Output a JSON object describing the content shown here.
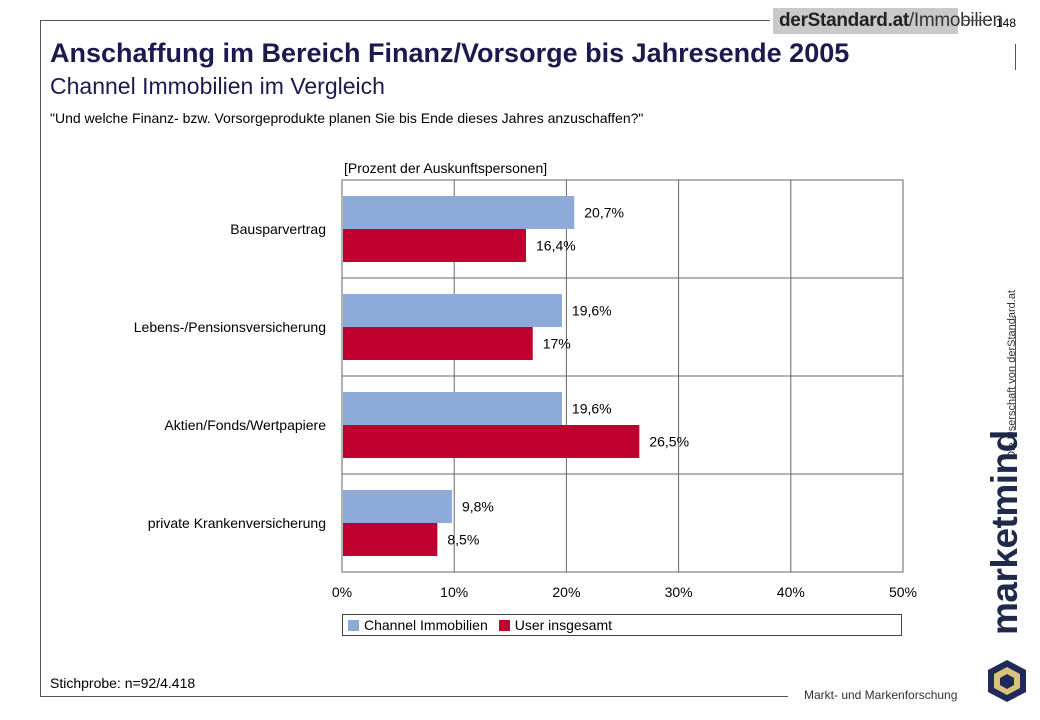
{
  "header": {
    "logo_bold": "derStandard.at",
    "logo_light": "/Immobilien",
    "page_number": "148"
  },
  "title": "Anschaffung im Bereich Finanz/Vorsorge bis Jahresende 2005",
  "subtitle": "Channel Immobilien im Vergleich",
  "question": "\"Und welche Finanz- bzw. Vorsorgeprodukte planen Sie bis Ende dieses Jahres anzuschaffen?\"",
  "side_text": "Die Userschaft von derStandard.at",
  "brand": {
    "name": "marketmind",
    "tagline": "Markt- und Markenforschung"
  },
  "sample": "Stichprobe: n=92/4.418",
  "colors": {
    "series1": "#8eaad8",
    "series2": "#c0002f",
    "grid": "#666666"
  },
  "chart_data": {
    "type": "bar",
    "orientation": "horizontal",
    "unit_label": "[Prozent der Auskunftspersonen]",
    "categories": [
      "Bausparvertrag",
      "Lebens-/Pensionsversicherung",
      "Aktien/Fonds/Wertpapiere",
      "private Krankenversicherung"
    ],
    "series": [
      {
        "name": "Channel Immobilien",
        "values": [
          20.7,
          19.6,
          19.6,
          9.8
        ],
        "labels": [
          "20,7%",
          "19,6%",
          "19,6%",
          "9,8%"
        ]
      },
      {
        "name": "User insgesamt",
        "values": [
          16.4,
          17,
          26.5,
          8.5
        ],
        "labels": [
          "16,4%",
          "17%",
          "26,5%",
          "8,5%"
        ]
      }
    ],
    "xlim": [
      0,
      50
    ],
    "ticks": [
      "0%",
      "10%",
      "20%",
      "30%",
      "40%",
      "50%"
    ],
    "grid": true,
    "legend_position": "bottom"
  }
}
